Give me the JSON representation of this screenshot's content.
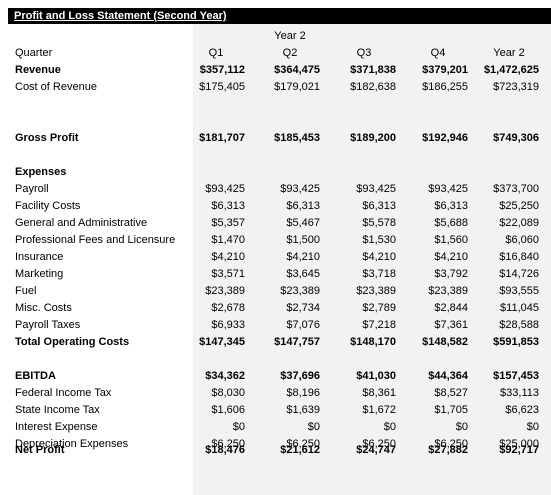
{
  "title": "Profit and Loss Statement (Second Year)",
  "year_label": "Year 2",
  "quarter_label": "Quarter",
  "columns": [
    "Q1",
    "Q2",
    "Q3",
    "Q4",
    "Year 2"
  ],
  "rows": [
    {
      "label": "Revenue",
      "bold": true,
      "values": [
        "$357,112",
        "$364,475",
        "$371,838",
        "$379,201",
        "$1,472,625"
      ]
    },
    {
      "label": "Cost of Revenue",
      "bold": false,
      "values": [
        "$175,405",
        "$179,021",
        "$182,638",
        "$186,255",
        "$723,319"
      ]
    },
    {
      "label": "Gross Profit",
      "bold": true,
      "values": [
        "$181,707",
        "$185,453",
        "$189,200",
        "$192,946",
        "$749,306"
      ]
    },
    {
      "label": "Expenses",
      "bold": true,
      "values": [
        "",
        "",
        "",
        "",
        ""
      ]
    },
    {
      "label": "Payroll",
      "bold": false,
      "values": [
        "$93,425",
        "$93,425",
        "$93,425",
        "$93,425",
        "$373,700"
      ]
    },
    {
      "label": "Facility Costs",
      "bold": false,
      "values": [
        "$6,313",
        "$6,313",
        "$6,313",
        "$6,313",
        "$25,250"
      ]
    },
    {
      "label": "General and Administrative",
      "bold": false,
      "values": [
        "$5,357",
        "$5,467",
        "$5,578",
        "$5,688",
        "$22,089"
      ]
    },
    {
      "label": "Professional Fees and Licensure",
      "bold": false,
      "values": [
        "$1,470",
        "$1,500",
        "$1,530",
        "$1,560",
        "$6,060"
      ]
    },
    {
      "label": "Insurance",
      "bold": false,
      "values": [
        "$4,210",
        "$4,210",
        "$4,210",
        "$4,210",
        "$16,840"
      ]
    },
    {
      "label": "Marketing",
      "bold": false,
      "values": [
        "$3,571",
        "$3,645",
        "$3,718",
        "$3,792",
        "$14,726"
      ]
    },
    {
      "label": "Fuel",
      "bold": false,
      "values": [
        "$23,389",
        "$23,389",
        "$23,389",
        "$23,389",
        "$93,555"
      ]
    },
    {
      "label": "Misc. Costs",
      "bold": false,
      "values": [
        "$2,678",
        "$2,734",
        "$2,789",
        "$2,844",
        "$11,045"
      ]
    },
    {
      "label": "Payroll Taxes",
      "bold": false,
      "values": [
        "$6,933",
        "$7,076",
        "$7,218",
        "$7,361",
        "$28,588"
      ]
    },
    {
      "label": "Total Operating Costs",
      "bold": true,
      "values": [
        "$147,345",
        "$147,757",
        "$148,170",
        "$148,582",
        "$591,853"
      ]
    },
    {
      "label": "EBITDA",
      "bold": true,
      "values": [
        "$34,362",
        "$37,696",
        "$41,030",
        "$44,364",
        "$157,453"
      ]
    },
    {
      "label": "Federal Income Tax",
      "bold": false,
      "values": [
        "$8,030",
        "$8,196",
        "$8,361",
        "$8,527",
        "$33,113"
      ]
    },
    {
      "label": "State Income Tax",
      "bold": false,
      "values": [
        "$1,606",
        "$1,639",
        "$1,672",
        "$1,705",
        "$6,623"
      ]
    },
    {
      "label": "Interest Expense",
      "bold": false,
      "values": [
        "$0",
        "$0",
        "$0",
        "$0",
        "$0"
      ]
    },
    {
      "label": "Depreciation Expenses",
      "bold": false,
      "values": [
        "$6,250",
        "$6,250",
        "$6,250",
        "$6,250",
        "$25,000"
      ]
    },
    {
      "label": "Net Profit",
      "bold": true,
      "values": [
        "$18,476",
        "$21,612",
        "$24,747",
        "$27,882",
        "$92,717"
      ]
    }
  ]
}
